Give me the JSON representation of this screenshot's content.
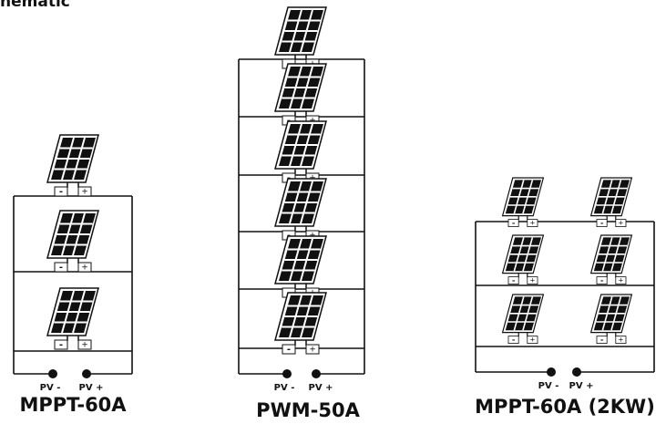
{
  "header": {
    "title": "hematic"
  },
  "terminals": {
    "minus": "-",
    "plus": "+"
  },
  "diagrams": [
    {
      "label": "MPPT-60A",
      "pv_minus": "PV -",
      "pv_plus": "PV +"
    },
    {
      "label": "PWM-50A",
      "pv_minus": "PV -",
      "pv_plus": "PV +"
    },
    {
      "label": "MPPT-60A (2KW)",
      "pv_minus": "PV -",
      "pv_plus": "PV +"
    }
  ]
}
